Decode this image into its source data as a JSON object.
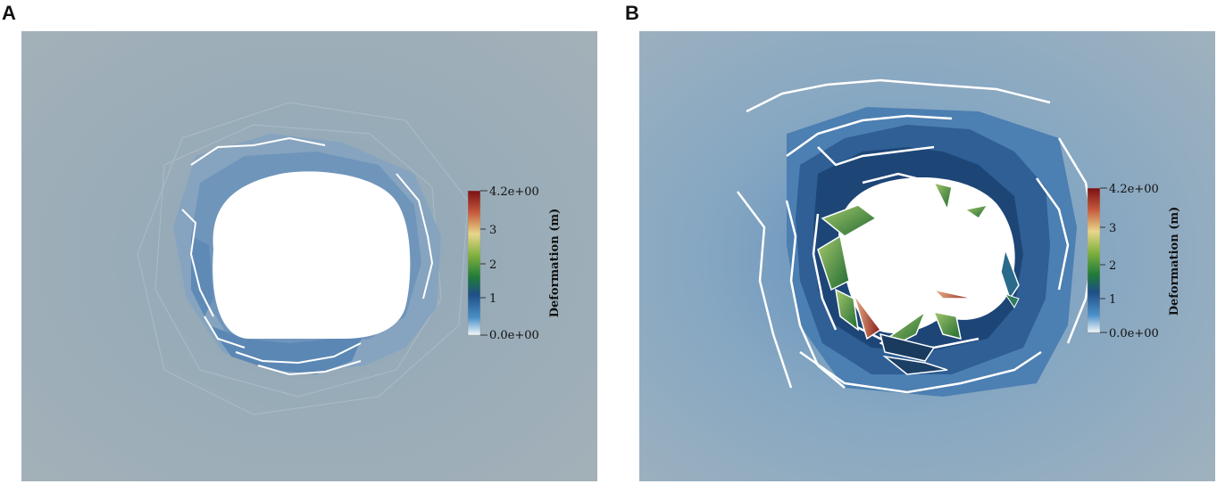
{
  "panels": [
    {
      "label": "A",
      "colorbar": {
        "title": "Deformation (m)",
        "max_label": "4.2e+00",
        "min_label": "0.0e+00",
        "ticks": [
          "3",
          "2",
          "1"
        ],
        "colors": [
          "#f3f7fb",
          "#4a90c8",
          "#1f4f86",
          "#1f7a3a",
          "#7fb03d",
          "#e8d68a",
          "#c55a3c",
          "#7a0f14"
        ]
      },
      "background_color": "#9fb0bb"
    },
    {
      "label": "B",
      "colorbar": {
        "title": "Deformation (m)",
        "max_label": "4.2e+00",
        "min_label": "0.0e+00",
        "ticks": [
          "3",
          "2",
          "1"
        ],
        "colors": [
          "#f3f7fb",
          "#4a90c8",
          "#1f4f86",
          "#1f7a3a",
          "#7fb03d",
          "#e8d68a",
          "#c55a3c",
          "#7a0f14"
        ]
      },
      "background_color": "#8fa9bd"
    }
  ]
}
